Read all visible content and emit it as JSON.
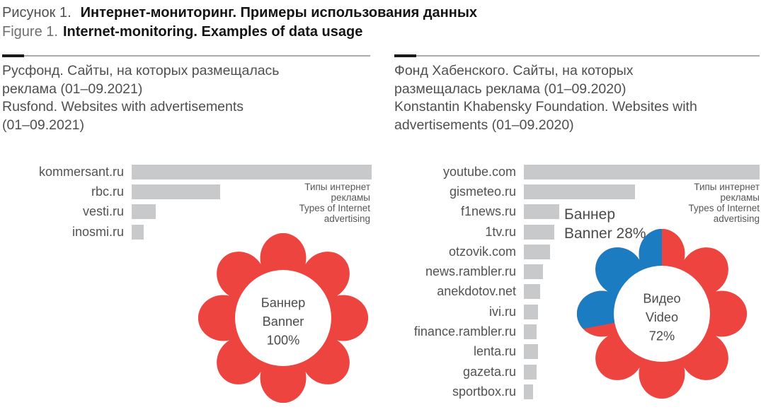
{
  "figure": {
    "title_ru_prefix": "Рисунок 1.",
    "title_ru": "Интернет-мониторинг. Примеры использования данных",
    "title_en_prefix": "Figure 1.",
    "title_en": "Internet-monitoring. Examples of data usage"
  },
  "colors": {
    "red": "#ee4440",
    "blue": "#1c7cc2",
    "bar_gray": "#c8c9ca",
    "text_gray": "#4e4f51"
  },
  "panels": [
    {
      "key": "left",
      "header_lines": [
        "Русфонд. Сайты, на которых размещалась",
        "реклама (01–09.2021)",
        "Rusfond. Websites with advertisements",
        "(01–09.2021)"
      ],
      "type_label_lines": [
        "Типы интернет",
        "рекламы",
        "Types of Internet",
        "advertising"
      ]
    },
    {
      "key": "right",
      "header_lines": [
        "Фонд Хабенского. Сайты, на которых",
        "размещалась реклама (01–09.2020)",
        "Konstantin Khabensky Foundation. Websites with",
        "advertisements (01–09.2020)"
      ],
      "type_label_lines": [
        "Типы интернет",
        "рекламы",
        "Types of Internet",
        "advertising"
      ],
      "callout_lines": [
        "Баннер",
        "Banner 28%"
      ]
    }
  ],
  "chart_data": [
    {
      "type": "bar",
      "panel": "left",
      "orientation": "horizontal",
      "title": "Русфонд. Сайты, на которых размещалась реклама (01–09.2021) / Rusfond. Websites with advertisements (01–09.2021)",
      "categories": [
        "kommersant.ru",
        "rbc.ru",
        "vesti.ru",
        "inosmi.ru"
      ],
      "values": [
        100,
        37,
        10,
        5
      ],
      "value_note": "relative bar length, % of longest bar; no numeric axis shown",
      "bar_color": "#c8c9ca",
      "grid": false,
      "legend": false
    },
    {
      "type": "pie",
      "panel": "left",
      "shape": "flower",
      "title": "Типы интернет рекламы / Types of Internet advertising",
      "slices": [
        {
          "label_ru": "Баннер",
          "label_en": "Banner",
          "value": 100,
          "color": "#ee4440"
        }
      ],
      "center_lines": [
        "Баннер",
        "Banner",
        "100%"
      ]
    },
    {
      "type": "bar",
      "panel": "right",
      "orientation": "horizontal",
      "title": "Фонд Хабенского. Сайты, на которых размещалась реклама (01–09.2020) / Konstantin Khabensky Foundation. Websites with advertisements (01–09.2020)",
      "categories": [
        "youtube.com",
        "gismeteo.ru",
        "f1news.ru",
        "1tv.ru",
        "otzovik.com",
        "news.rambler.ru",
        "anekdotov.net",
        "ivi.ru",
        "finance.rambler.ru",
        "lenta.ru",
        "gazeta.ru",
        "sportbox.ru"
      ],
      "values": [
        100,
        47,
        15,
        13,
        11,
        8,
        7,
        6,
        5.5,
        6,
        5.5,
        4
      ],
      "value_note": "relative bar length, % of longest bar; no numeric axis shown",
      "bar_color": "#c8c9ca",
      "grid": false,
      "legend": false
    },
    {
      "type": "pie",
      "panel": "right",
      "shape": "flower",
      "title": "Типы интернет рекламы / Types of Internet advertising",
      "slices": [
        {
          "label_ru": "Видео",
          "label_en": "Video",
          "value": 72,
          "color": "#ee4440"
        },
        {
          "label_ru": "Баннер",
          "label_en": "Banner",
          "value": 28,
          "color": "#1c7cc2"
        }
      ],
      "center_lines": [
        "Видео",
        "Video",
        "72%"
      ]
    }
  ]
}
